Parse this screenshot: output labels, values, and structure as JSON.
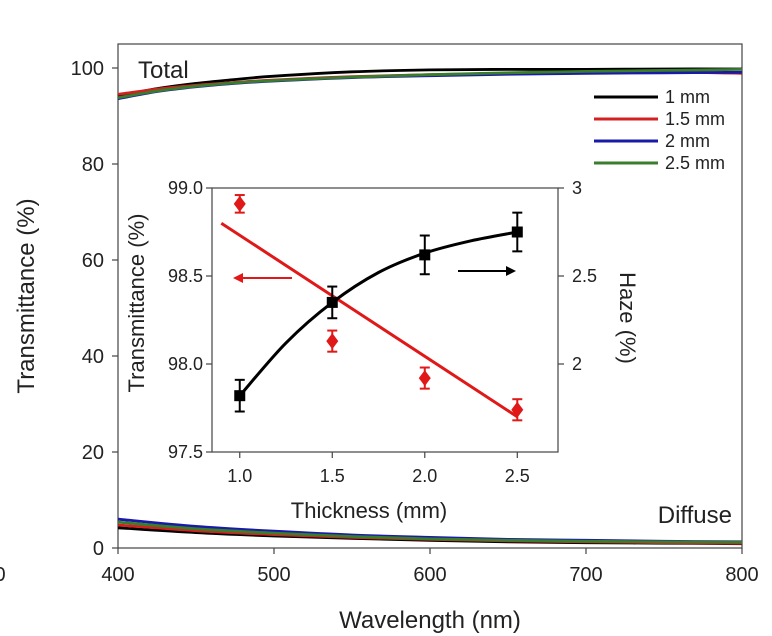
{
  "chart_data": [
    {
      "type": "line",
      "title": "",
      "xlabel": "Wavelength (nm)",
      "ylabel": "Transmittance (%)",
      "xlim": [
        400,
        800
      ],
      "ylim": [
        0,
        105
      ],
      "xticks": [
        400,
        500,
        600,
        700,
        800
      ],
      "yticks": [
        0,
        20,
        40,
        60,
        80,
        100
      ],
      "edge_tick_label": "0",
      "annotations": [
        "Total",
        "Diffuse"
      ],
      "legend_position": "top-right",
      "series": [
        {
          "name": "1 mm",
          "color": "#000000",
          "total": {
            "x": [
              400,
              425,
              450,
              475,
              500,
              550,
              600,
              650,
              700,
              750,
              800
            ],
            "y": [
              94.2,
              95.7,
              96.8,
              97.6,
              98.3,
              99.2,
              99.6,
              99.7,
              99.7,
              99.8,
              99.8
            ]
          },
          "diffuse": {
            "x": [
              400,
              450,
              500,
              550,
              600,
              650,
              700,
              750,
              800
            ],
            "y": [
              4.2,
              3.2,
              2.5,
              2.0,
              1.6,
              1.3,
              1.1,
              1.0,
              0.9
            ]
          }
        },
        {
          "name": "1.5 mm",
          "color": "#d42020",
          "total": {
            "x": [
              400,
              425,
              450,
              475,
              500,
              550,
              600,
              650,
              700,
              750,
              800
            ],
            "y": [
              94.5,
              95.6,
              96.4,
              97.0,
              97.5,
              98.2,
              98.6,
              98.9,
              99.1,
              99.2,
              98.9
            ]
          },
          "diffuse": {
            "x": [
              400,
              450,
              500,
              550,
              600,
              650,
              700,
              750,
              800
            ],
            "y": [
              4.8,
              3.6,
              2.8,
              2.2,
              1.8,
              1.5,
              1.3,
              1.1,
              1.0
            ]
          }
        },
        {
          "name": "2 mm",
          "color": "#1a1aa8",
          "total": {
            "x": [
              400,
              425,
              450,
              475,
              500,
              550,
              600,
              650,
              700,
              750,
              800
            ],
            "y": [
              93.6,
              95.1,
              96.1,
              96.8,
              97.3,
              98.0,
              98.4,
              98.7,
              98.9,
              99.0,
              99.1
            ]
          },
          "diffuse": {
            "x": [
              400,
              450,
              500,
              550,
              600,
              650,
              700,
              750,
              800
            ],
            "y": [
              6.0,
              4.5,
              3.5,
              2.7,
              2.2,
              1.8,
              1.6,
              1.4,
              1.3
            ]
          }
        },
        {
          "name": "2.5 mm",
          "color": "#3a7d2c",
          "total": {
            "x": [
              400,
              425,
              450,
              475,
              500,
              550,
              600,
              650,
              700,
              750,
              800
            ],
            "y": [
              93.8,
              95.2,
              96.2,
              96.9,
              97.4,
              98.1,
              98.6,
              99.0,
              99.3,
              99.5,
              99.7
            ]
          },
          "diffuse": {
            "x": [
              400,
              450,
              500,
              550,
              600,
              650,
              700,
              750,
              800
            ],
            "y": [
              5.4,
              4.0,
              3.1,
              2.4,
              1.9,
              1.6,
              1.4,
              1.3,
              1.2
            ]
          }
        }
      ]
    },
    {
      "type": "scatter",
      "title": "",
      "xlabel": "Thickness (mm)",
      "ylabel": "Transmittance (%)",
      "y2label": "Haze (%)",
      "xlim": [
        0.85,
        2.72
      ],
      "ylim": [
        97.5,
        99.0
      ],
      "y2lim": [
        1.5,
        3.0
      ],
      "xticks": [
        "1.0",
        "1.5",
        "2.0",
        "2.5"
      ],
      "yticks": [
        "97.5",
        "98.0",
        "98.5",
        "99.0"
      ],
      "y2ticks": [
        "2",
        "2.5",
        "3"
      ],
      "series": [
        {
          "name": "Transmittance",
          "axis": "left",
          "color": "#e01818",
          "marker": "diamond",
          "x": [
            1.0,
            1.5,
            2.0,
            2.5
          ],
          "y": [
            98.91,
            98.13,
            97.92,
            97.74
          ],
          "err": [
            0.05,
            0.06,
            0.06,
            0.06
          ],
          "fit": {
            "x": [
              0.9,
              2.5
            ],
            "y": [
              98.8,
              97.7
            ]
          }
        },
        {
          "name": "Haze",
          "axis": "right",
          "color": "#000000",
          "marker": "square",
          "x": [
            1.0,
            1.5,
            2.0,
            2.5
          ],
          "y": [
            1.82,
            2.35,
            2.62,
            2.75
          ],
          "err": [
            0.09,
            0.09,
            0.11,
            0.11
          ],
          "fit": {
            "x": [
              1.0,
              1.25,
              1.5,
              1.75,
              2.0,
              2.25,
              2.5
            ],
            "y": [
              1.82,
              2.12,
              2.35,
              2.52,
              2.63,
              2.7,
              2.75
            ]
          }
        }
      ]
    }
  ]
}
